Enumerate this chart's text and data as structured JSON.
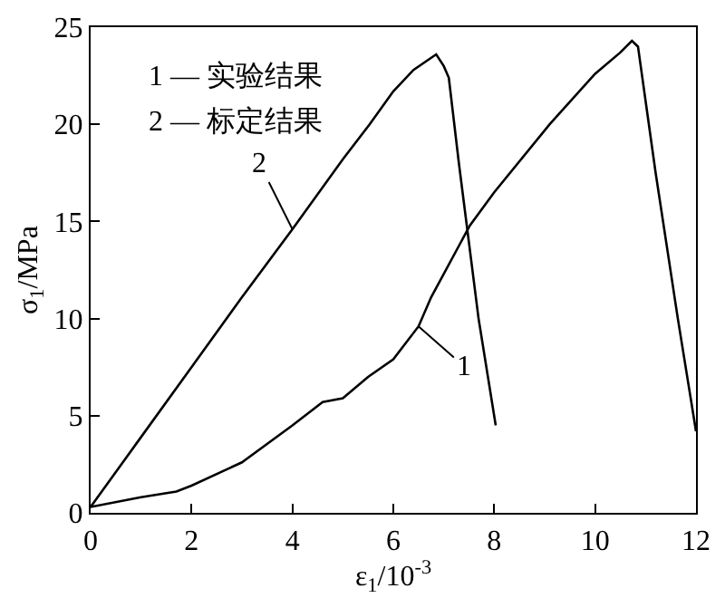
{
  "chart_data": {
    "type": "line",
    "xlabel": "ε$_{1}$/10$^{-3}$",
    "ylabel": "σ$_{1}$/MPa",
    "series": [
      {
        "color": "#000000",
        "x": [
          0,
          1,
          1.7,
          2,
          3,
          4,
          4.6,
          5.0,
          5.5,
          6,
          6.5,
          6.75,
          7.52,
          8,
          9.1,
          10,
          10.5,
          10.73,
          10.85,
          11.2,
          11.64,
          12
        ],
        "values": [
          0.3,
          0.8,
          1.1,
          1.4,
          2.6,
          4.5,
          5.7,
          5.9,
          7.0,
          7.9,
          9.6,
          11.1,
          14.8,
          16.5,
          20,
          22.6,
          23.7,
          24.3,
          24.0,
          17.5,
          10,
          4.2
        ]
      },
      {
        "color": "#000000",
        "x": [
          0,
          1,
          2,
          3,
          4,
          5,
          5.53,
          6,
          6.4,
          6.85,
          7.0,
          7.1,
          7.3,
          7.69,
          8.03
        ],
        "values": [
          0.3,
          3.9,
          7.5,
          11.1,
          14.6,
          18.2,
          20,
          21.7,
          22.8,
          23.6,
          23.0,
          22.4,
          18,
          10,
          4.5
        ]
      }
    ],
    "annotations": [
      {
        "text": "1",
        "x": 6.5,
        "y": 9.6
      },
      {
        "text": "2",
        "x": 4,
        "y": 14.6
      },
      "1 — 实验结果",
      "2 — 标定结果"
    ],
    "xlim": [
      0,
      12
    ],
    "xticks": [
      0,
      2,
      4,
      6,
      8,
      10,
      12
    ],
    "ylim": [
      0,
      25
    ],
    "yticks": [
      0,
      5,
      10,
      15,
      20,
      25
    ],
    "marker": "none",
    "line_style": "solid"
  }
}
